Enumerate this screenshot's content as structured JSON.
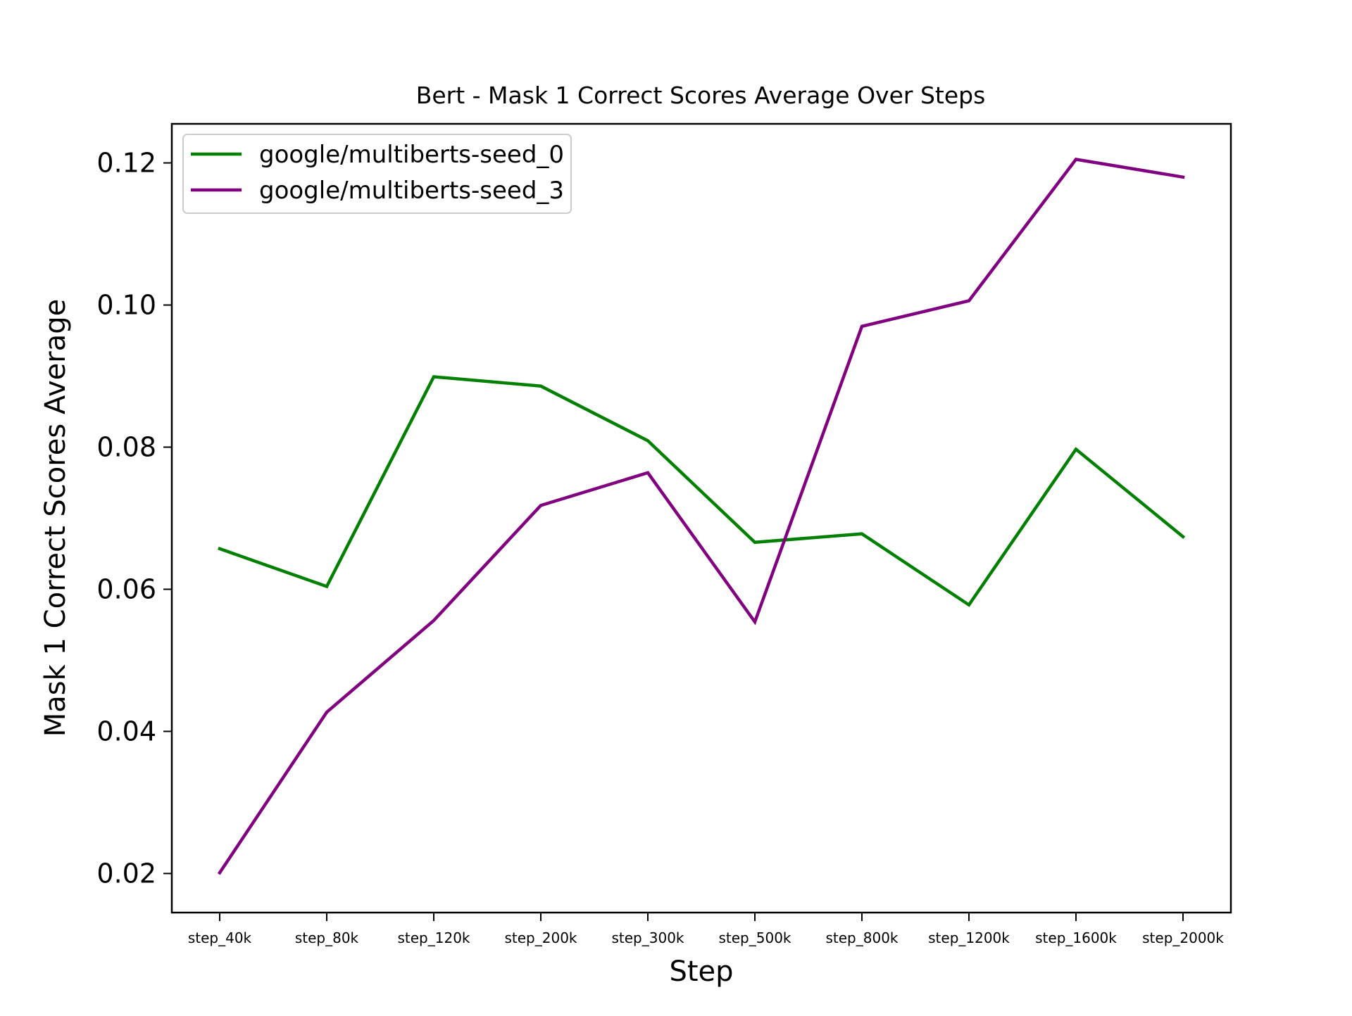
{
  "chart_data": {
    "type": "line",
    "title": "Bert - Mask 1 Correct Scores Average Over Steps",
    "xlabel": "Step",
    "ylabel": "Mask 1 Correct Scores Average",
    "categories": [
      "step_40k",
      "step_80k",
      "step_120k",
      "step_200k",
      "step_300k",
      "step_500k",
      "step_800k",
      "step_1200k",
      "step_1600k",
      "step_2000k"
    ],
    "yticks": [
      "0.02",
      "0.04",
      "0.06",
      "0.08",
      "0.10",
      "0.12"
    ],
    "ylim": [
      0.0145,
      0.1255
    ],
    "grid": false,
    "legend_position": "upper-left",
    "series": [
      {
        "name": "google/multiberts-seed_0",
        "color": "#008000",
        "values": [
          0.0657,
          0.0604,
          0.0899,
          0.0886,
          0.0809,
          0.0666,
          0.0678,
          0.0578,
          0.0797,
          0.0674
        ]
      },
      {
        "name": "google/multiberts-seed_3",
        "color": "#800080",
        "values": [
          0.0201,
          0.0427,
          0.0556,
          0.0718,
          0.0764,
          0.0554,
          0.097,
          0.1006,
          0.1205,
          0.118
        ]
      }
    ]
  }
}
